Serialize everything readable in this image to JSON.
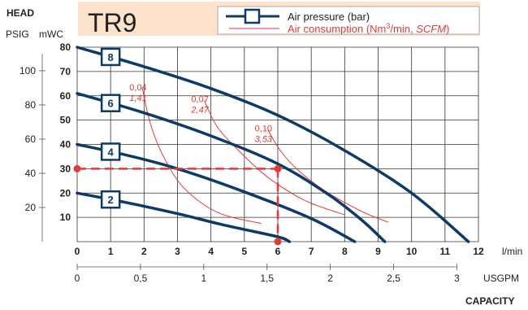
{
  "colors": {
    "curve": "#0e3a66",
    "consumption": "#e03a3a",
    "operating_point": "#e03a3a",
    "header_box": "#fde2cc",
    "grid": "#333333"
  },
  "chart_data": {
    "type": "line",
    "title": "TR9",
    "legend": {
      "pressure": "Air pressure (bar)",
      "consumption_prefix": "Air consumption (Nm",
      "consumption_sup": "3",
      "consumption_mid": "/min, ",
      "consumption_italic": "SCFM",
      "consumption_suffix": ")"
    },
    "y_axis": {
      "header": "HEAD",
      "left_unit_label": "PSIG",
      "right_unit_label": "mWC",
      "mwc_ticks": [
        10,
        20,
        30,
        40,
        50,
        60,
        70,
        80
      ],
      "mwc_range": [
        0,
        80
      ],
      "psig_ticks": [
        20,
        40,
        60,
        80,
        100
      ],
      "psig_per_mwc": 1.4223
    },
    "x_axis": {
      "unit_lmin": "l/min",
      "unit_usgpm": "USGPM",
      "caption": "CAPACITY",
      "lmin_ticks": [
        0,
        1,
        2,
        3,
        4,
        5,
        6,
        7,
        8,
        9,
        10,
        11,
        12
      ],
      "lmin_range": [
        0,
        12
      ],
      "usgpm_ticks": [
        {
          "label": "0",
          "value": 0
        },
        {
          "label": "0,5",
          "value": 0.5
        },
        {
          "label": "1",
          "value": 1
        },
        {
          "label": "1,5",
          "value": 1.5
        },
        {
          "label": "2",
          "value": 2
        },
        {
          "label": "2,5",
          "value": 2.5
        },
        {
          "label": "3",
          "value": 3
        }
      ],
      "lmin_per_usgpm": 3.785
    },
    "series": [
      {
        "name": "8",
        "points": [
          [
            0,
            80
          ],
          [
            2,
            72
          ],
          [
            4,
            63
          ],
          [
            6,
            52
          ],
          [
            8,
            37.5
          ],
          [
            10,
            20
          ],
          [
            11.7,
            0
          ]
        ]
      },
      {
        "name": "6",
        "points": [
          [
            0,
            61
          ],
          [
            2,
            53
          ],
          [
            4,
            43.5
          ],
          [
            6,
            32
          ],
          [
            7.5,
            19.5
          ],
          [
            8.5,
            9
          ],
          [
            9.2,
            0
          ]
        ]
      },
      {
        "name": "4",
        "points": [
          [
            0,
            40
          ],
          [
            1.5,
            35.5
          ],
          [
            3,
            30
          ],
          [
            5,
            20.5
          ],
          [
            7,
            9.5
          ],
          [
            8.3,
            0
          ]
        ]
      },
      {
        "name": "2",
        "points": [
          [
            0,
            20
          ],
          [
            1.5,
            16
          ],
          [
            3,
            11.5
          ],
          [
            4.5,
            6.5
          ],
          [
            6,
            2
          ],
          [
            6.35,
            0
          ]
        ]
      }
    ],
    "consumption_curves": [
      {
        "label_nm3": "0,04",
        "label_scfm": "1,41",
        "points": [
          [
            1.95,
            63
          ],
          [
            2.2,
            48
          ],
          [
            2.6,
            34.5
          ],
          [
            3.2,
            22
          ],
          [
            4.2,
            12
          ],
          [
            5.5,
            7.5
          ]
        ]
      },
      {
        "label_nm3": "0,07",
        "label_scfm": "2,47",
        "points": [
          [
            3.8,
            58
          ],
          [
            4.2,
            47
          ],
          [
            4.9,
            36.5
          ],
          [
            5.7,
            26.5
          ],
          [
            6.8,
            17
          ],
          [
            8.0,
            11
          ]
        ]
      },
      {
        "label_nm3": "0,10",
        "label_scfm": "3,53",
        "points": [
          [
            5.7,
            46
          ],
          [
            6.1,
            37
          ],
          [
            6.6,
            29.5
          ],
          [
            7.4,
            21
          ],
          [
            8.5,
            12.5
          ],
          [
            9.3,
            8
          ]
        ]
      }
    ],
    "operating_point": {
      "x": 6,
      "y": 30
    }
  }
}
